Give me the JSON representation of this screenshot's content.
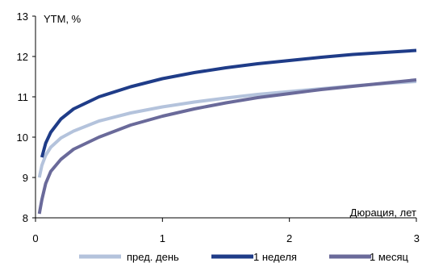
{
  "chart_data": {
    "type": "line",
    "title": "",
    "xlabel": "Дюрация, лет",
    "ylabel": "YTM, %",
    "xlim": [
      0,
      3
    ],
    "ylim": [
      8,
      13
    ],
    "x_ticks": [
      "0",
      "1",
      "2",
      "3"
    ],
    "y_ticks": [
      "8",
      "9",
      "10",
      "11",
      "12",
      "13"
    ],
    "grid": false,
    "legend_position": "bottom",
    "series": [
      {
        "name": "пред. день",
        "color": "#b4c3dc",
        "x": [
          0.03,
          0.05,
          0.08,
          0.12,
          0.2,
          0.3,
          0.5,
          0.75,
          1.0,
          1.25,
          1.5,
          1.75,
          2.0,
          2.25,
          2.5,
          2.75,
          3.0
        ],
        "y": [
          9.0,
          9.3,
          9.55,
          9.75,
          9.98,
          10.15,
          10.4,
          10.6,
          10.75,
          10.87,
          10.97,
          11.06,
          11.13,
          11.2,
          11.27,
          11.33,
          11.38
        ]
      },
      {
        "name": "1 неделя",
        "color": "#1f3c88",
        "x": [
          0.05,
          0.08,
          0.12,
          0.2,
          0.3,
          0.5,
          0.75,
          1.0,
          1.25,
          1.5,
          1.75,
          2.0,
          2.25,
          2.5,
          2.75,
          3.0
        ],
        "y": [
          9.5,
          9.85,
          10.12,
          10.45,
          10.7,
          11.0,
          11.25,
          11.45,
          11.6,
          11.72,
          11.82,
          11.9,
          11.98,
          12.05,
          12.1,
          12.15
        ]
      },
      {
        "name": "1 месяц",
        "color": "#6a6a9a",
        "x": [
          0.03,
          0.05,
          0.08,
          0.12,
          0.2,
          0.3,
          0.5,
          0.75,
          1.0,
          1.25,
          1.5,
          1.75,
          2.0,
          2.25,
          2.5,
          2.75,
          3.0
        ],
        "y": [
          8.1,
          8.45,
          8.85,
          9.15,
          9.45,
          9.7,
          10.0,
          10.3,
          10.52,
          10.7,
          10.85,
          10.98,
          11.08,
          11.18,
          11.26,
          11.34,
          11.42
        ]
      }
    ]
  }
}
